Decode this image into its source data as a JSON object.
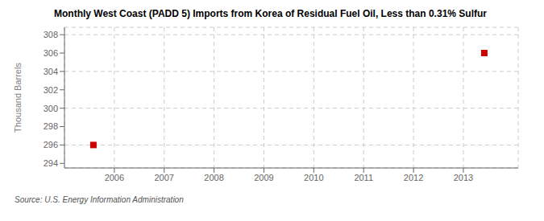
{
  "chart_data": {
    "type": "scatter",
    "title": "Monthly West Coast (PADD 5) Imports from Korea of Residual Fuel Oil, Less than 0.31% Sulfur",
    "ylabel": "Thousand Barrels",
    "source": "Source: U.S. Energy Information Administration",
    "x": [
      2005.58,
      2013.42
    ],
    "values": [
      296,
      306
    ],
    "color": "#cc0000",
    "marker": "square",
    "xlim": [
      2005.0,
      2014.1
    ],
    "xticks": [
      2006,
      2007,
      2008,
      2009,
      2010,
      2011,
      2012,
      2013
    ],
    "ylim": [
      293.5,
      308.8
    ],
    "yticks": [
      294,
      296,
      298,
      300,
      302,
      304,
      306,
      308
    ],
    "grid": true
  }
}
